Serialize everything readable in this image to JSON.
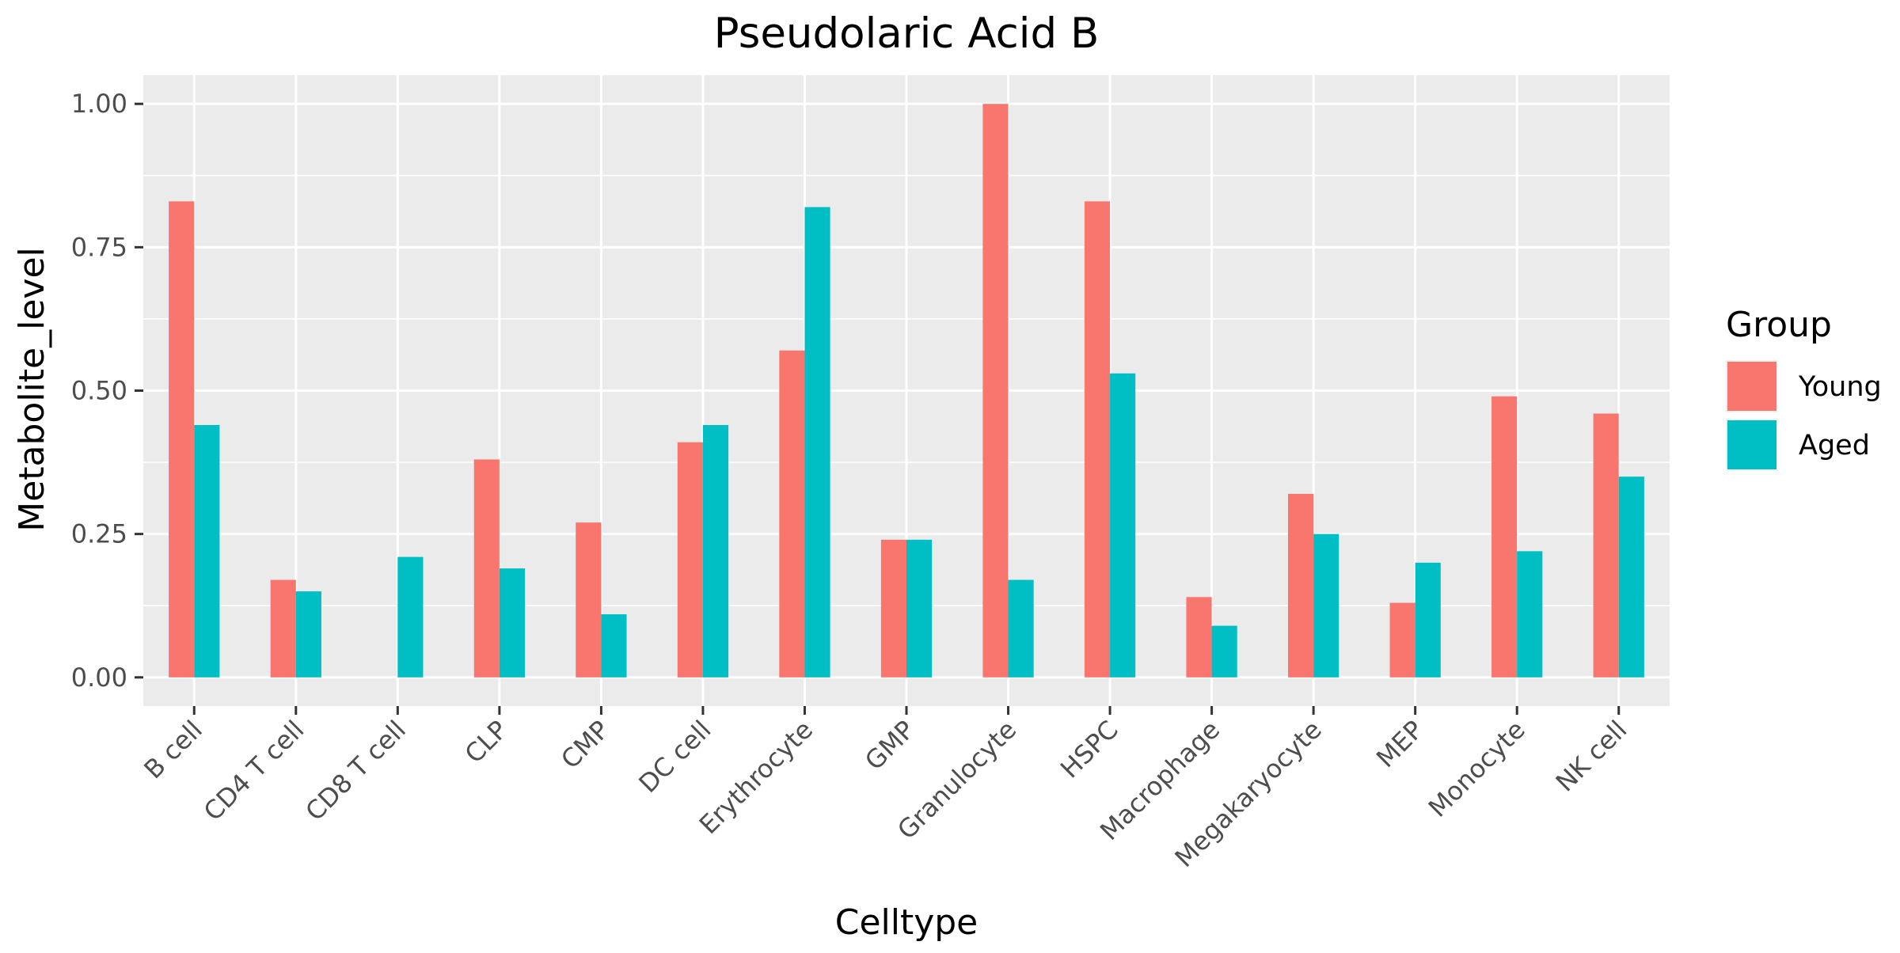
{
  "chart_data": {
    "type": "bar",
    "title": "Pseudolaric Acid B",
    "xlabel": "Celltype",
    "ylabel": "Metabolite_level",
    "categories": [
      "B cell",
      "CD4 T cell",
      "CD8 T cell",
      "CLP",
      "CMP",
      "DC cell",
      "Erythrocyte",
      "GMP",
      "Granulocyte",
      "HSPC",
      "Macrophage",
      "Megakaryocyte",
      "MEP",
      "Monocyte",
      "NK cell"
    ],
    "series": [
      {
        "name": "Young",
        "color": "#F8766D",
        "values": [
          0.83,
          0.17,
          0.0,
          0.38,
          0.27,
          0.41,
          0.57,
          0.24,
          1.0,
          0.83,
          0.14,
          0.32,
          0.13,
          0.49,
          0.46
        ]
      },
      {
        "name": "Aged",
        "color": "#00BFC4",
        "values": [
          0.44,
          0.15,
          0.21,
          0.19,
          0.11,
          0.44,
          0.82,
          0.24,
          0.17,
          0.53,
          0.09,
          0.25,
          0.2,
          0.22,
          0.35
        ]
      }
    ],
    "yticks": [
      "0.00",
      "0.25",
      "0.50",
      "0.75",
      "1.00"
    ],
    "ylim": [
      -0.05,
      1.05
    ],
    "grid": true,
    "legend": {
      "title": "Group",
      "placement": "right"
    },
    "panel_background": "#EBEBEB",
    "grid_color": "#FFFFFF"
  }
}
